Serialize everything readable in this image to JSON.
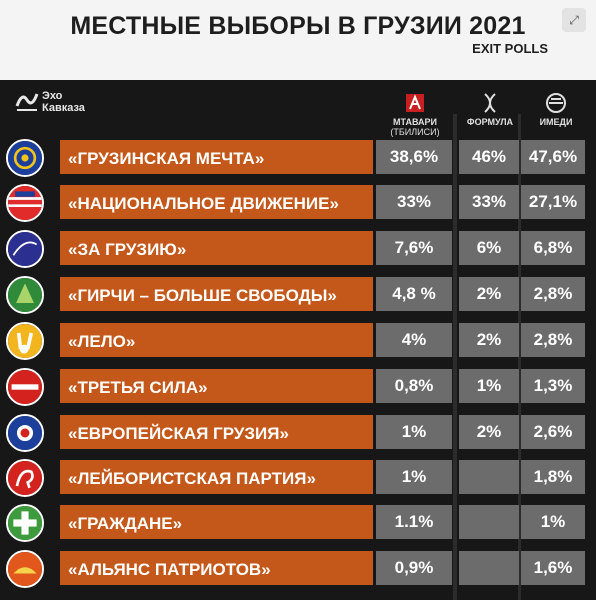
{
  "header": {
    "title": "МЕСТНЫЕ ВЫБОРЫ В ГРУЗИИ 2021",
    "subtitle": "EXIT POLLS"
  },
  "logo": {
    "line1": "Эхо",
    "line2": "Кавказа"
  },
  "columns": [
    {
      "name": "МТАВАРИ",
      "sub": "(ТБИЛИСИ)",
      "icon": "mtavari-logo-icon"
    },
    {
      "name": "ФОРМУЛА",
      "sub": "",
      "icon": "formula-logo-icon"
    },
    {
      "name": "ИМЕДИ",
      "sub": "",
      "icon": "imedi-logo-icon"
    }
  ],
  "colors": {
    "bar": "#c3581a",
    "cell": "#6c6c6c",
    "background": "#171717"
  },
  "chart_data": {
    "type": "table",
    "title": "МЕСТНЫЕ ВЫБОРЫ В ГРУЗИИ 2021",
    "subtitle": "EXIT POLLS",
    "columns": [
      "МТАВАРИ (ТБИЛИСИ)",
      "ФОРМУЛА",
      "ИМЕДИ"
    ],
    "rows": [
      {
        "party": "«ГРУЗИНСКАЯ МЕЧТА»",
        "values": [
          "38,6%",
          "46%",
          "47,6%"
        ]
      },
      {
        "party": "«НАЦИОНАЛЬНОЕ ДВИЖЕНИЕ»",
        "values": [
          "33%",
          "33%",
          "27,1%"
        ]
      },
      {
        "party": "«ЗА ГРУЗИЮ»",
        "values": [
          "7,6%",
          "6%",
          "6,8%"
        ]
      },
      {
        "party": "«ГИРЧИ – БОЛЬШЕ СВОБОДЫ»",
        "values": [
          "4,8 %",
          "2%",
          "2,8%"
        ]
      },
      {
        "party": "«ЛЕЛО»",
        "values": [
          "4%",
          "2%",
          "2,8%"
        ]
      },
      {
        "party": "«ТРЕТЬЯ СИЛА»",
        "values": [
          "0,8%",
          "1%",
          "1,3%"
        ]
      },
      {
        "party": "«ЕВРОПЕЙСКАЯ ГРУЗИЯ»",
        "values": [
          "1%",
          "2%",
          "2,6%"
        ]
      },
      {
        "party": "«ЛЕЙБОРИСТСКАЯ ПАРТИЯ»",
        "values": [
          "1%",
          "",
          "1,8%"
        ]
      },
      {
        "party": "«ГРАЖДАНЕ»",
        "values": [
          "1.1%",
          "",
          "1%"
        ]
      },
      {
        "party": "«АЛЬЯНС ПАТРИОТОВ»",
        "values": [
          "0,9%",
          "",
          "1,6%"
        ]
      }
    ]
  },
  "badges": [
    "georgian-dream-logo-icon",
    "national-movement-logo-icon",
    "for-georgia-logo-icon",
    "girchi-logo-icon",
    "lelo-logo-icon",
    "third-force-logo-icon",
    "european-georgia-logo-icon",
    "labour-party-logo-icon",
    "citizens-logo-icon",
    "patriots-alliance-logo-icon"
  ]
}
